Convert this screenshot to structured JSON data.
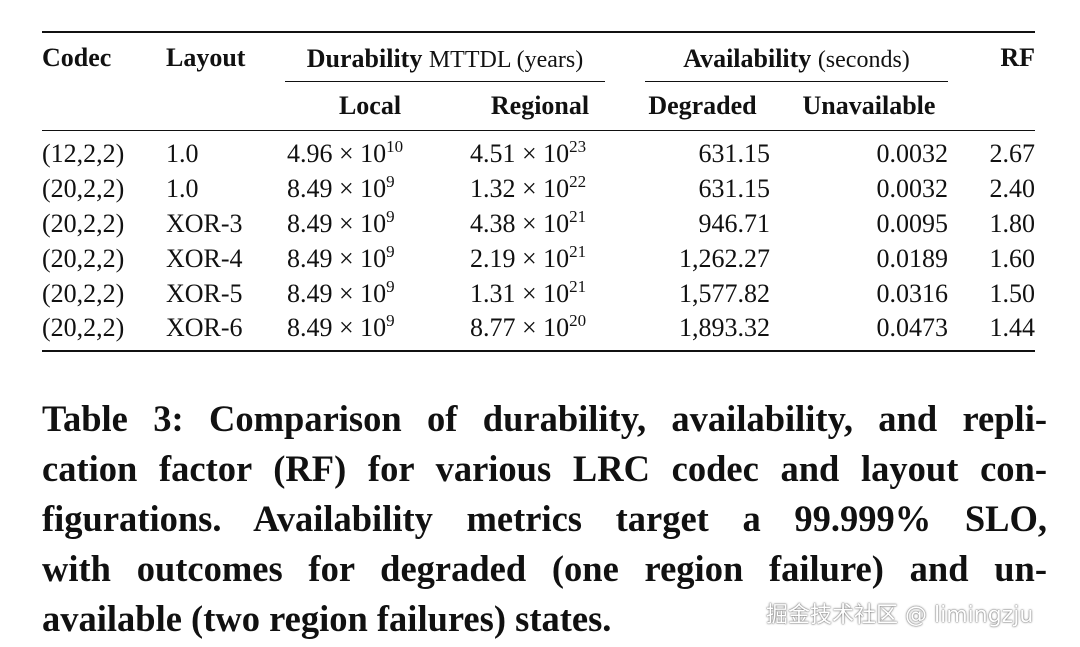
{
  "table": {
    "headers": {
      "codec": "Codec",
      "layout": "Layout",
      "durability": "Durability",
      "durability_unit": "MTTDL (years)",
      "availability": "Availability",
      "availability_unit": "(seconds)",
      "rf": "RF",
      "local": "Local",
      "regional": "Regional",
      "degraded": "Degraded",
      "unavailable": "Unavailable"
    },
    "times": "×",
    "rows": [
      {
        "codec": "(12,2,2)",
        "layout": "1.0",
        "local": {
          "m": "4.96",
          "b": "10",
          "e": "10"
        },
        "regional": {
          "m": "4.51",
          "b": "10",
          "e": "23"
        },
        "degraded": "631.15",
        "unavailable": "0.0032",
        "rf": "2.67"
      },
      {
        "codec": "(20,2,2)",
        "layout": "1.0",
        "local": {
          "m": "8.49",
          "b": "10",
          "e": "9"
        },
        "regional": {
          "m": "1.32",
          "b": "10",
          "e": "22"
        },
        "degraded": "631.15",
        "unavailable": "0.0032",
        "rf": "2.40"
      },
      {
        "codec": "(20,2,2)",
        "layout": "XOR-3",
        "local": {
          "m": "8.49",
          "b": "10",
          "e": "9"
        },
        "regional": {
          "m": "4.38",
          "b": "10",
          "e": "21"
        },
        "degraded": "946.71",
        "unavailable": "0.0095",
        "rf": "1.80"
      },
      {
        "codec": "(20,2,2)",
        "layout": "XOR-4",
        "local": {
          "m": "8.49",
          "b": "10",
          "e": "9"
        },
        "regional": {
          "m": "2.19",
          "b": "10",
          "e": "21"
        },
        "degraded": "1,262.27",
        "unavailable": "0.0189",
        "rf": "1.60"
      },
      {
        "codec": "(20,2,2)",
        "layout": "XOR-5",
        "local": {
          "m": "8.49",
          "b": "10",
          "e": "9"
        },
        "regional": {
          "m": "1.31",
          "b": "10",
          "e": "21"
        },
        "degraded": "1,577.82",
        "unavailable": "0.0316",
        "rf": "1.50"
      },
      {
        "codec": "(20,2,2)",
        "layout": "XOR-6",
        "local": {
          "m": "8.49",
          "b": "10",
          "e": "9"
        },
        "regional": {
          "m": "8.77",
          "b": "10",
          "e": "20"
        },
        "degraded": "1,893.32",
        "unavailable": "0.0473",
        "rf": "1.44"
      }
    ]
  },
  "caption": {
    "lines": [
      "Table 3: Comparison of durability, availability, and repli-",
      "cation factor (RF) for various LRC codec and layout con-",
      "figurations. Availability metrics target a 99.999% SLO,",
      "with outcomes for degraded (one region failure) and un-",
      "available (two region failures) states."
    ]
  },
  "watermark": "掘金技术社区 @ limingzju"
}
